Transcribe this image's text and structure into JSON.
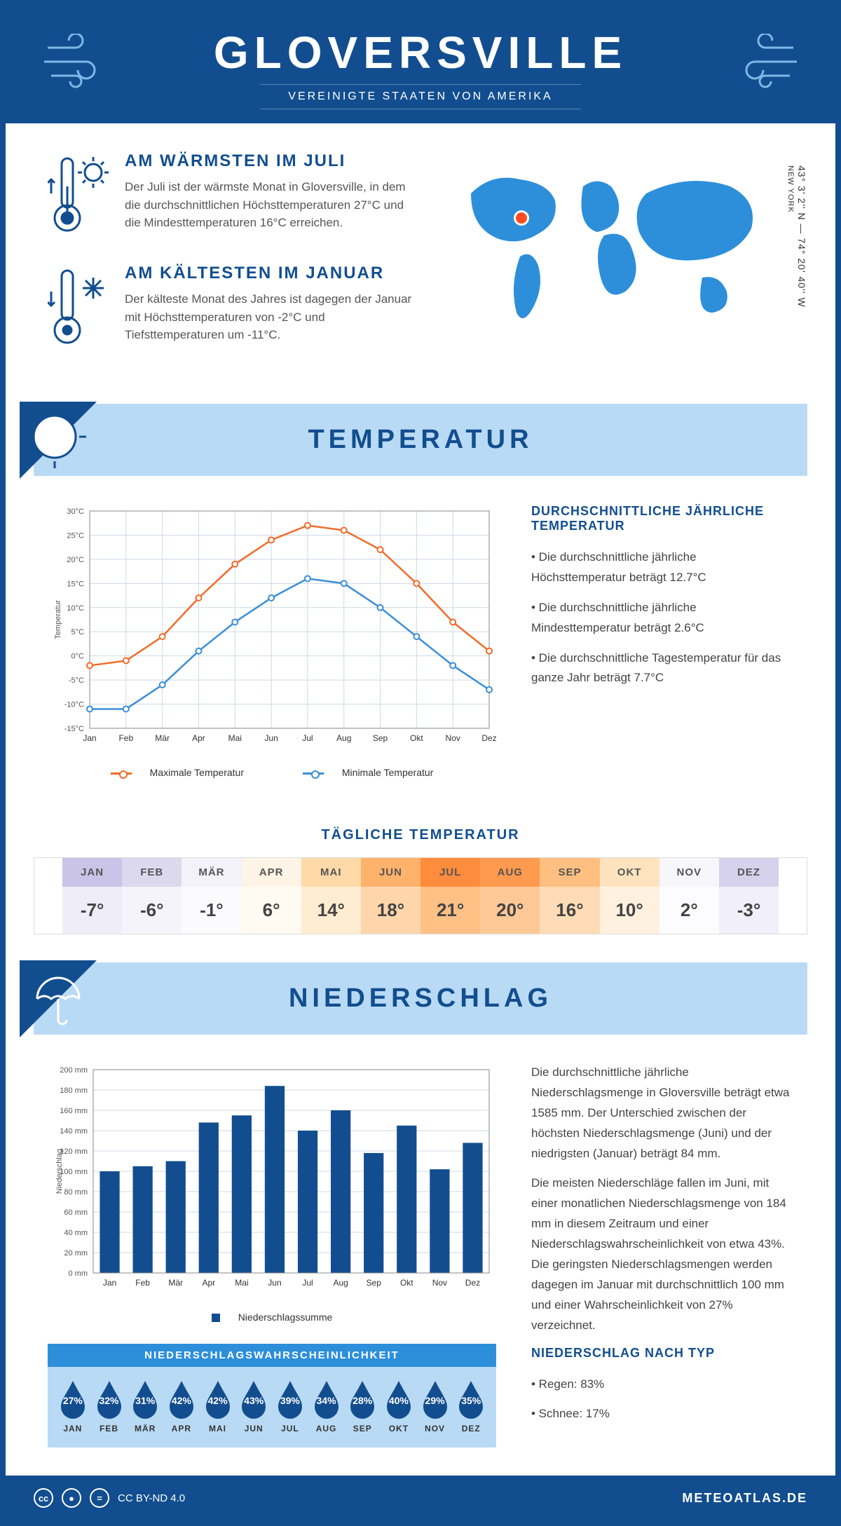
{
  "header": {
    "title": "GLOVERSVILLE",
    "subtitle": "VEREINIGTE STAATEN VON AMERIKA"
  },
  "intro": {
    "warm": {
      "heading": "AM WÄRMSTEN IM JULI",
      "text": "Der Juli ist der wärmste Monat in Gloversville, in dem die durchschnittlichen Höchsttemperaturen 27°C und die Mindesttemperaturen 16°C erreichen."
    },
    "cold": {
      "heading": "AM KÄLTESTEN IM JANUAR",
      "text": "Der kälteste Monat des Jahres ist dagegen der Januar mit Höchsttemperaturen von -2°C und Tiefsttemperaturen um -11°C."
    },
    "coords": "43° 3' 2'' N — 74° 20' 40'' W",
    "state": "NEW YORK"
  },
  "temp_section": {
    "title": "TEMPERATUR",
    "chart": {
      "type": "line",
      "months": [
        "Jan",
        "Feb",
        "Mär",
        "Apr",
        "Mai",
        "Jun",
        "Jul",
        "Aug",
        "Sep",
        "Okt",
        "Nov",
        "Dez"
      ],
      "max_label": "Maximale Temperatur",
      "min_label": "Minimale Temperatur",
      "y_label": "Temperatur",
      "max_color": "#f26b29",
      "min_color": "#3b8fd6",
      "grid_color": "#cfd8e6",
      "ylim": [
        -15,
        30
      ],
      "ytick_step": 5,
      "max_values": [
        -2,
        -1,
        4,
        12,
        19,
        24,
        27,
        26,
        22,
        15,
        7,
        1
      ],
      "min_values": [
        -11,
        -11,
        -6,
        1,
        7,
        12,
        16,
        15,
        10,
        4,
        -2,
        -7
      ]
    },
    "avg": {
      "heading": "DURCHSCHNITTLICHE JÄHRLICHE TEMPERATUR",
      "b1": "• Die durchschnittliche jährliche Höchsttemperatur beträgt 12.7°C",
      "b2": "• Die durchschnittliche jährliche Mindesttemperatur beträgt 2.6°C",
      "b3": "• Die durchschnittliche Tagestemperatur für das ganze Jahr beträgt 7.7°C"
    },
    "daily": {
      "title": "TÄGLICHE TEMPERATUR",
      "months": [
        "JAN",
        "FEB",
        "MÄR",
        "APR",
        "MAI",
        "JUN",
        "JUL",
        "AUG",
        "SEP",
        "OKT",
        "NOV",
        "DEZ"
      ],
      "values": [
        "-7°",
        "-6°",
        "-1°",
        "6°",
        "14°",
        "18°",
        "21°",
        "20°",
        "16°",
        "10°",
        "2°",
        "-3°"
      ],
      "head_colors": [
        "#c9c4e8",
        "#dcd9ef",
        "#f3f2f9",
        "#fff4e5",
        "#ffd9a8",
        "#ffb26b",
        "#ff8b3d",
        "#ff9a4f",
        "#ffbf80",
        "#ffe3bf",
        "#f6f6fb",
        "#d6d2ed"
      ],
      "body_colors": [
        "#efeef8",
        "#f5f4fb",
        "#fbfafd",
        "#fffaf2",
        "#ffedd1",
        "#ffd6ab",
        "#ffc086",
        "#ffc997",
        "#ffdcb5",
        "#fff1de",
        "#fcfcfe",
        "#f1eff9"
      ]
    }
  },
  "precip_section": {
    "title": "NIEDERSCHLAG",
    "chart": {
      "type": "bar",
      "months": [
        "Jan",
        "Feb",
        "Mär",
        "Apr",
        "Mai",
        "Jun",
        "Jul",
        "Aug",
        "Sep",
        "Okt",
        "Nov",
        "Dez"
      ],
      "values": [
        100,
        105,
        110,
        148,
        155,
        184,
        140,
        160,
        118,
        145,
        102,
        128
      ],
      "y_label": "Niederschlag",
      "legend": "Niederschlagssumme",
      "bar_color": "#124e8f",
      "grid_color": "#cfd8e6",
      "ylim": [
        0,
        200
      ],
      "ytick_step": 20,
      "unit": "mm"
    },
    "text1": "Die durchschnittliche jährliche Niederschlagsmenge in Gloversville beträgt etwa 1585 mm. Der Unterschied zwischen der höchsten Niederschlagsmenge (Juni) und der niedrigsten (Januar) beträgt 84 mm.",
    "text2": "Die meisten Niederschläge fallen im Juni, mit einer monatlichen Niederschlagsmenge von 184 mm in diesem Zeitraum und einer Niederschlagswahrscheinlichkeit von etwa 43%. Die geringsten Niederschlagsmengen werden dagegen im Januar mit durchschnittlich 100 mm und einer Wahrscheinlichkeit von 27% verzeichnet.",
    "type_heading": "NIEDERSCHLAG NACH TYP",
    "type_b1": "• Regen: 83%",
    "type_b2": "• Schnee: 17%",
    "prob": {
      "title": "NIEDERSCHLAGSWAHRSCHEINLICHKEIT",
      "months": [
        "JAN",
        "FEB",
        "MÄR",
        "APR",
        "MAI",
        "JUN",
        "JUL",
        "AUG",
        "SEP",
        "OKT",
        "NOV",
        "DEZ"
      ],
      "values": [
        "27%",
        "32%",
        "31%",
        "42%",
        "42%",
        "43%",
        "39%",
        "34%",
        "28%",
        "40%",
        "29%",
        "35%"
      ],
      "drop_color": "#124e8f"
    }
  },
  "footer": {
    "license": "CC BY-ND 4.0",
    "brand": "METEOATLAS.DE"
  }
}
